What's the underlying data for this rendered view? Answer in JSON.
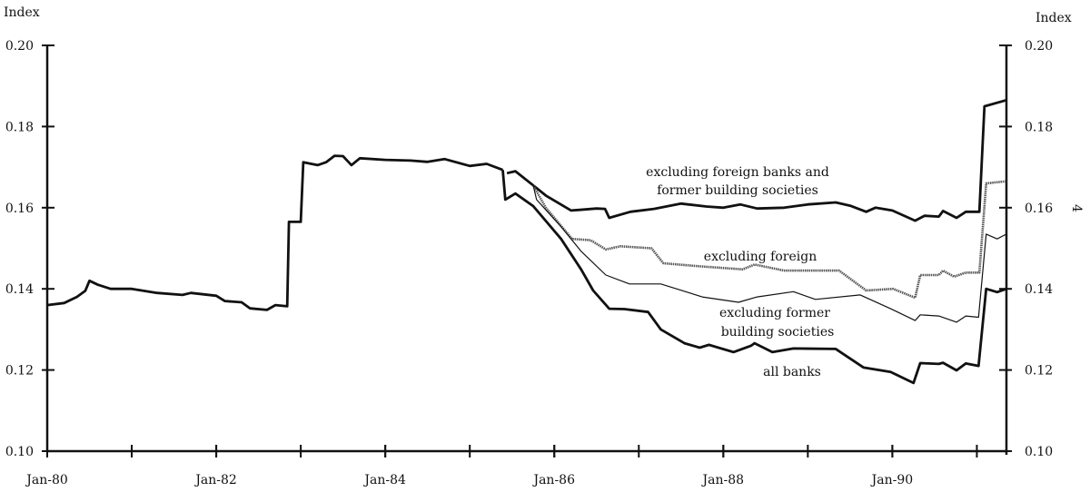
{
  "chart_data": {
    "type": "line",
    "title": "",
    "ylabel_left": "Index",
    "ylabel_right": "Index",
    "page_number": "4",
    "xlim": [
      1980.0,
      1991.35
    ],
    "ylim": [
      0.1,
      0.2
    ],
    "y_ticks": [
      0.1,
      0.12,
      0.14,
      0.16,
      0.18,
      0.2
    ],
    "y_tick_labels": [
      "0.10",
      "0.12",
      "0.14",
      "0.16",
      "0.18",
      "0.20"
    ],
    "x_minor_ticks": [
      1981,
      1982,
      1983,
      1984,
      1985,
      1986,
      1987,
      1988,
      1989,
      1990,
      1991
    ],
    "x_ticks": [
      1980,
      1982,
      1984,
      1986,
      1988,
      1990
    ],
    "x_tick_labels": [
      "Jan-80",
      "Jan-82",
      "Jan-84",
      "Jan-86",
      "Jan-88",
      "Jan-90"
    ],
    "grid": false,
    "common_segment": [
      [
        1980.0,
        0.136
      ],
      [
        1980.2,
        0.1365
      ],
      [
        1980.35,
        0.138
      ],
      [
        1980.45,
        0.1395
      ],
      [
        1980.5,
        0.142
      ],
      [
        1980.6,
        0.141
      ],
      [
        1980.75,
        0.14
      ],
      [
        1981.0,
        0.14
      ],
      [
        1981.3,
        0.139
      ],
      [
        1981.6,
        0.1385
      ],
      [
        1981.7,
        0.139
      ],
      [
        1982.0,
        0.1383
      ],
      [
        1982.1,
        0.137
      ],
      [
        1982.3,
        0.1367
      ],
      [
        1982.4,
        0.1352
      ],
      [
        1982.6,
        0.1348
      ],
      [
        1982.7,
        0.136
      ],
      [
        1982.84,
        0.1357
      ],
      [
        1982.86,
        0.1565
      ],
      [
        1983.0,
        0.1565
      ],
      [
        1983.03,
        0.1712
      ],
      [
        1983.2,
        0.1705
      ],
      [
        1983.3,
        0.1712
      ],
      [
        1983.4,
        0.1728
      ],
      [
        1983.5,
        0.1727
      ],
      [
        1983.6,
        0.1705
      ],
      [
        1983.7,
        0.1722
      ],
      [
        1984.0,
        0.1718
      ],
      [
        1984.3,
        0.1716
      ],
      [
        1984.5,
        0.1713
      ],
      [
        1984.7,
        0.172
      ],
      [
        1985.0,
        0.1703
      ],
      [
        1985.2,
        0.1708
      ],
      [
        1985.39,
        0.1693
      ]
    ],
    "series": [
      {
        "name": "excluding foreign banks and former building societies",
        "style": "thick",
        "points": [
          [
            1985.44,
            0.1685
          ],
          [
            1985.54,
            0.169
          ],
          [
            1985.75,
            0.1655
          ],
          [
            1985.9,
            0.163
          ],
          [
            1986.2,
            0.1593
          ],
          [
            1986.5,
            0.1598
          ],
          [
            1986.6,
            0.1597
          ],
          [
            1986.65,
            0.1575
          ],
          [
            1986.9,
            0.159
          ],
          [
            1987.18,
            0.1597
          ],
          [
            1987.5,
            0.161
          ],
          [
            1987.8,
            0.1603
          ],
          [
            1988.0,
            0.16
          ],
          [
            1988.2,
            0.1608
          ],
          [
            1988.4,
            0.1598
          ],
          [
            1988.72,
            0.16
          ],
          [
            1989.0,
            0.1608
          ],
          [
            1989.33,
            0.1613
          ],
          [
            1989.5,
            0.1605
          ],
          [
            1989.69,
            0.159
          ],
          [
            1989.8,
            0.16
          ],
          [
            1990.0,
            0.1593
          ],
          [
            1990.27,
            0.1568
          ],
          [
            1990.38,
            0.158
          ],
          [
            1990.55,
            0.1578
          ],
          [
            1990.6,
            0.1592
          ],
          [
            1990.76,
            0.1575
          ],
          [
            1990.87,
            0.159
          ],
          [
            1991.03,
            0.159
          ],
          [
            1991.09,
            0.185
          ],
          [
            1991.35,
            0.1865
          ]
        ]
      },
      {
        "name": "excluding foreign",
        "style": "dotted",
        "points": [
          [
            1985.75,
            0.1655
          ],
          [
            1985.9,
            0.16
          ],
          [
            1986.21,
            0.1523
          ],
          [
            1986.43,
            0.152
          ],
          [
            1986.61,
            0.1497
          ],
          [
            1986.78,
            0.1505
          ],
          [
            1987.15,
            0.15
          ],
          [
            1987.29,
            0.1463
          ],
          [
            1987.75,
            0.1455
          ],
          [
            1988.23,
            0.1448
          ],
          [
            1988.37,
            0.146
          ],
          [
            1988.72,
            0.1445
          ],
          [
            1989.37,
            0.1445
          ],
          [
            1989.69,
            0.1396
          ],
          [
            1990.01,
            0.14
          ],
          [
            1990.27,
            0.1378
          ],
          [
            1990.33,
            0.1434
          ],
          [
            1990.55,
            0.1434
          ],
          [
            1990.6,
            0.1445
          ],
          [
            1990.73,
            0.143
          ],
          [
            1990.87,
            0.144
          ],
          [
            1991.03,
            0.144
          ],
          [
            1991.11,
            0.166
          ],
          [
            1991.35,
            0.1665
          ]
        ]
      },
      {
        "name": "excluding former building societies",
        "style": "thin",
        "points": [
          [
            1985.75,
            0.1655
          ],
          [
            1985.79,
            0.162
          ],
          [
            1986.08,
            0.1553
          ],
          [
            1986.32,
            0.1492
          ],
          [
            1986.61,
            0.1434
          ],
          [
            1986.89,
            0.1412
          ],
          [
            1987.26,
            0.1412
          ],
          [
            1987.75,
            0.138
          ],
          [
            1988.18,
            0.1367
          ],
          [
            1988.4,
            0.138
          ],
          [
            1988.83,
            0.1393
          ],
          [
            1989.09,
            0.1374
          ],
          [
            1989.62,
            0.1385
          ],
          [
            1989.98,
            0.1351
          ],
          [
            1990.27,
            0.1322
          ],
          [
            1990.33,
            0.1336
          ],
          [
            1990.55,
            0.1333
          ],
          [
            1990.76,
            0.1318
          ],
          [
            1990.87,
            0.1333
          ],
          [
            1991.02,
            0.133
          ],
          [
            1991.11,
            0.1535
          ],
          [
            1991.24,
            0.1523
          ],
          [
            1991.35,
            0.1535
          ]
        ]
      },
      {
        "name": "all banks",
        "style": "thick",
        "points": [
          [
            1985.39,
            0.1693
          ],
          [
            1985.42,
            0.162
          ],
          [
            1985.54,
            0.1635
          ],
          [
            1985.75,
            0.1604
          ],
          [
            1986.08,
            0.1523
          ],
          [
            1986.32,
            0.1447
          ],
          [
            1986.46,
            0.1396
          ],
          [
            1986.65,
            0.1351
          ],
          [
            1986.83,
            0.135
          ],
          [
            1987.11,
            0.1343
          ],
          [
            1987.26,
            0.13
          ],
          [
            1987.54,
            0.1266
          ],
          [
            1987.72,
            0.1255
          ],
          [
            1987.83,
            0.1262
          ],
          [
            1988.12,
            0.1244
          ],
          [
            1988.33,
            0.126
          ],
          [
            1988.37,
            0.1266
          ],
          [
            1988.58,
            0.1244
          ],
          [
            1988.83,
            0.1253
          ],
          [
            1989.33,
            0.1252
          ],
          [
            1989.66,
            0.1206
          ],
          [
            1989.98,
            0.1195
          ],
          [
            1990.25,
            0.1168
          ],
          [
            1990.33,
            0.1217
          ],
          [
            1990.55,
            0.1215
          ],
          [
            1990.6,
            0.1218
          ],
          [
            1990.76,
            0.1199
          ],
          [
            1990.87,
            0.1216
          ],
          [
            1991.02,
            0.121
          ],
          [
            1991.11,
            0.14
          ],
          [
            1991.24,
            0.1392
          ],
          [
            1991.35,
            0.14
          ]
        ]
      }
    ],
    "annotations": {
      "excl_both_line1": "excluding foreign banks and",
      "excl_both_line2": "former building societies",
      "excl_foreign": "excluding foreign",
      "excl_bs_line1": "excluding former",
      "excl_bs_line2": "building societies",
      "all_banks": "all banks"
    }
  }
}
